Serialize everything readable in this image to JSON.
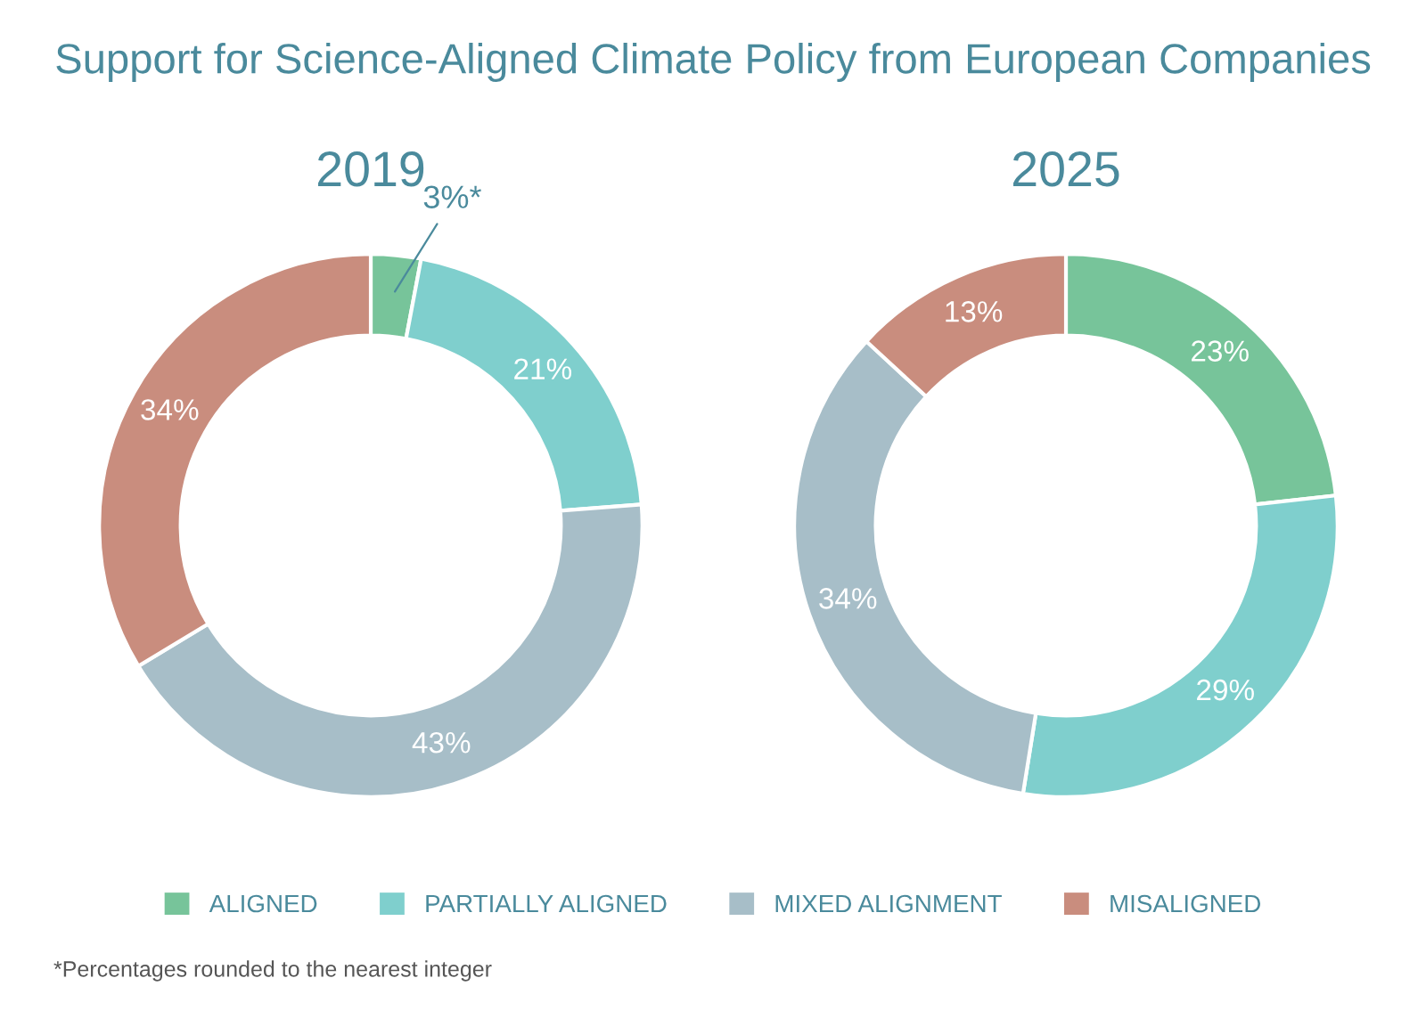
{
  "chart_data": [
    {
      "type": "donut",
      "title": "2019",
      "categories": [
        "ALIGNED",
        "PARTIALLY ALIGNED",
        "MIXED ALIGNMENT",
        "MISALIGNED"
      ],
      "values": [
        3,
        21,
        43,
        34
      ],
      "colors": [
        "#77c49a",
        "#7fcfcd",
        "#a7bec8",
        "#c98d7e"
      ],
      "value_labels": [
        "3%*",
        "21%",
        "43%",
        "34%"
      ],
      "legend": "bottom",
      "annotations": [
        "Support for Science-Aligned Climate Policy from European Companies",
        "*Percentages rounded to the nearest integer"
      ]
    },
    {
      "type": "donut",
      "title": "2025",
      "values": [
        23,
        29,
        34,
        13
      ],
      "colors": [
        "#77c49a",
        "#7fcfcd",
        "#a7bec8",
        "#c98d7e"
      ],
      "value_labels": [
        "23%",
        "29%",
        "34%",
        "13%"
      ]
    }
  ]
}
